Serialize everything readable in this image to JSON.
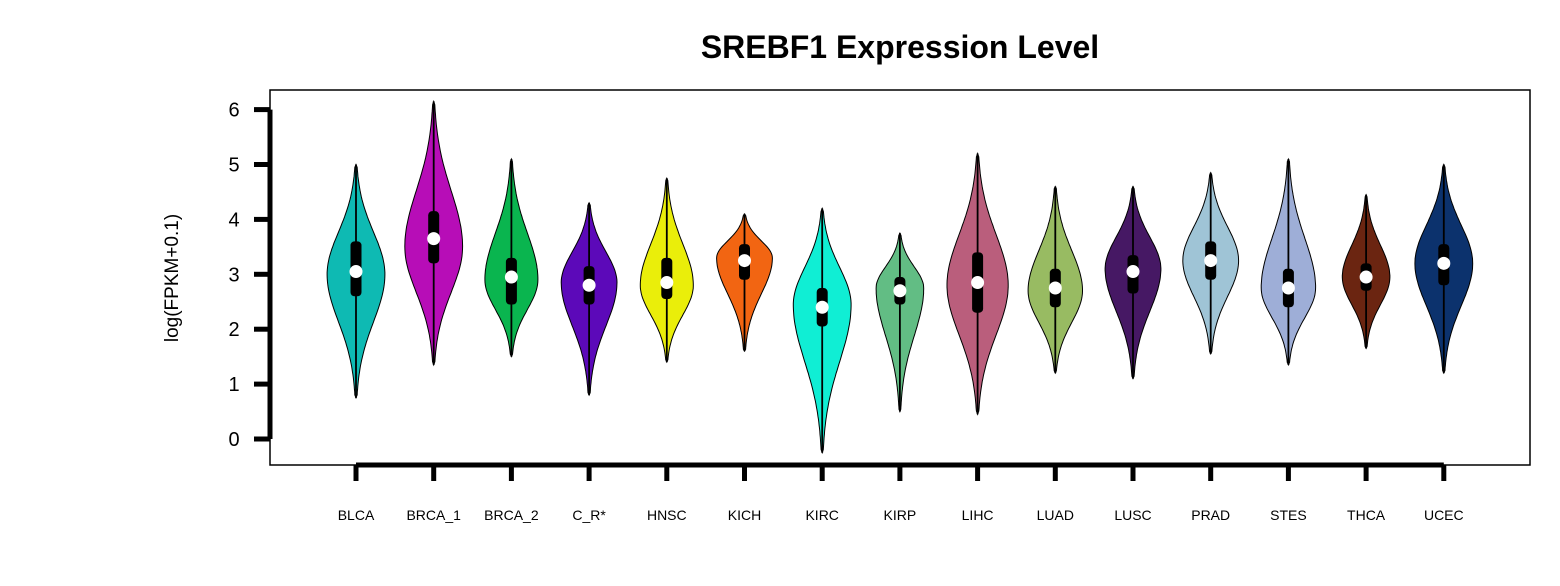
{
  "chart_data": {
    "type": "violin",
    "title": "SREBF1 Expression Level",
    "xlabel": "",
    "ylabel": "log(FPKM+0.1)",
    "ylim": [
      -0.5,
      6.4
    ],
    "yticks": [
      0,
      1,
      2,
      3,
      4,
      5,
      6
    ],
    "grid": false,
    "legend": "none",
    "categories": [
      "BLCA",
      "BRCA_1",
      "BRCA_2",
      "C_R*",
      "HNSC",
      "KICH",
      "KIRC",
      "KIRP",
      "LIHC",
      "LUAD",
      "LUSC",
      "PRAD",
      "STES",
      "THCA",
      "UCEC"
    ],
    "series": [
      {
        "category": "BLCA",
        "color": "#0ebab3",
        "min": 0.75,
        "q1": 2.6,
        "median": 3.05,
        "q3": 3.6,
        "max": 5.0,
        "mode": 3.0,
        "width": 0.85
      },
      {
        "category": "BRCA_1",
        "color": "#b70db7",
        "min": 1.35,
        "q1": 3.2,
        "median": 3.65,
        "q3": 4.15,
        "max": 6.15,
        "mode": 3.5,
        "width": 0.85
      },
      {
        "category": "BRCA_2",
        "color": "#0ab54f",
        "min": 1.5,
        "q1": 2.45,
        "median": 2.95,
        "q3": 3.3,
        "max": 5.1,
        "mode": 2.9,
        "width": 0.78
      },
      {
        "category": "C_R*",
        "color": "#5c09b9",
        "min": 0.8,
        "q1": 2.45,
        "median": 2.8,
        "q3": 3.15,
        "max": 4.3,
        "mode": 2.85,
        "width": 0.82
      },
      {
        "category": "HNSC",
        "color": "#eaee0a",
        "min": 1.4,
        "q1": 2.55,
        "median": 2.85,
        "q3": 3.3,
        "max": 4.75,
        "mode": 2.8,
        "width": 0.78
      },
      {
        "category": "KICH",
        "color": "#f26512",
        "min": 1.6,
        "q1": 2.9,
        "median": 3.25,
        "q3": 3.55,
        "max": 4.1,
        "mode": 3.3,
        "width": 0.82
      },
      {
        "category": "KIRC",
        "color": "#10eed4",
        "min": -0.25,
        "q1": 2.05,
        "median": 2.4,
        "q3": 2.75,
        "max": 4.2,
        "mode": 2.45,
        "width": 0.85
      },
      {
        "category": "KIRP",
        "color": "#62bd84",
        "min": 0.5,
        "q1": 2.45,
        "median": 2.7,
        "q3": 2.95,
        "max": 3.75,
        "mode": 2.75,
        "width": 0.7
      },
      {
        "category": "LIHC",
        "color": "#ba5e7c",
        "min": 0.45,
        "q1": 2.3,
        "median": 2.85,
        "q3": 3.4,
        "max": 5.2,
        "mode": 2.8,
        "width": 0.9
      },
      {
        "category": "LUAD",
        "color": "#98bb62",
        "min": 1.2,
        "q1": 2.4,
        "median": 2.75,
        "q3": 3.1,
        "max": 4.6,
        "mode": 2.7,
        "width": 0.8
      },
      {
        "category": "LUSC",
        "color": "#461864",
        "min": 1.1,
        "q1": 2.65,
        "median": 3.05,
        "q3": 3.35,
        "max": 4.6,
        "mode": 3.1,
        "width": 0.82
      },
      {
        "category": "PRAD",
        "color": "#9fc4d6",
        "min": 1.55,
        "q1": 2.9,
        "median": 3.25,
        "q3": 3.6,
        "max": 4.85,
        "mode": 3.25,
        "width": 0.82
      },
      {
        "category": "STES",
        "color": "#9eaed7",
        "min": 1.35,
        "q1": 2.4,
        "median": 2.75,
        "q3": 3.1,
        "max": 5.1,
        "mode": 2.75,
        "width": 0.8
      },
      {
        "category": "THCA",
        "color": "#6b2511",
        "min": 1.65,
        "q1": 2.7,
        "median": 2.95,
        "q3": 3.2,
        "max": 4.45,
        "mode": 2.95,
        "width": 0.7
      },
      {
        "category": "UCEC",
        "color": "#0c326d",
        "min": 1.2,
        "q1": 2.8,
        "median": 3.2,
        "q3": 3.55,
        "max": 5.0,
        "mode": 3.2,
        "width": 0.85
      }
    ]
  }
}
